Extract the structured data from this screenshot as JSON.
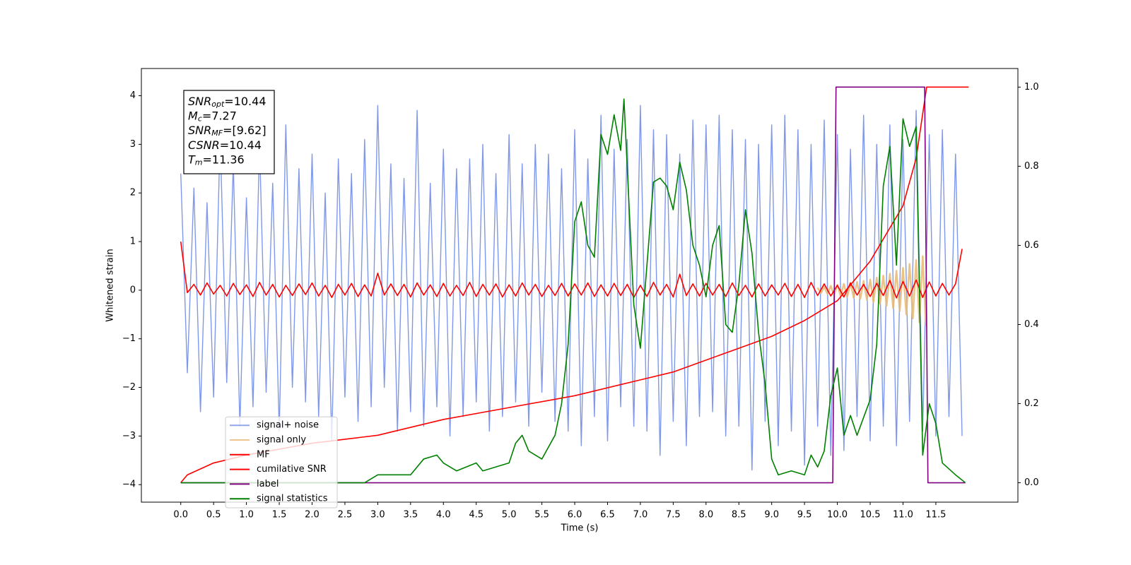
{
  "chart_data": {
    "type": "line",
    "xlabel": "Time (s)",
    "ylabel": "Whitened strain",
    "xlim": [
      -0.6,
      12.75
    ],
    "ylim": [
      -4.36,
      4.56
    ],
    "y2lim": [
      -0.049,
      1.047
    ],
    "xticks": [
      {
        "value": 0,
        "label": "0.0"
      },
      0.5,
      {
        "value": 1,
        "label": "1.0"
      },
      1.5,
      {
        "value": 2,
        "label": "2.0"
      },
      2.5,
      {
        "value": 3,
        "label": "3.0"
      },
      3.5,
      {
        "value": 4,
        "label": "4.0"
      },
      4.5,
      {
        "value": 5,
        "label": "5.0"
      },
      5.5,
      {
        "value": 6,
        "label": "6.0"
      },
      6.5,
      {
        "value": 7,
        "label": "7.0"
      },
      7.5,
      {
        "value": 8,
        "label": "8.0"
      },
      8.5,
      {
        "value": 9,
        "label": "9.0"
      },
      9.5,
      {
        "value": 10,
        "label": "10.0"
      },
      10.5,
      {
        "value": 11,
        "label": "11.0"
      },
      11.5
    ],
    "yticks": [
      {
        "value": -4,
        "label": "−4"
      },
      {
        "value": -3,
        "label": "−3"
      },
      {
        "value": -2,
        "label": "−2"
      },
      {
        "value": -1,
        "label": "−1"
      },
      0,
      1,
      2,
      3,
      4
    ],
    "y2ticks": [
      {
        "value": 0,
        "label": "0.0"
      },
      0.2,
      0.4,
      0.6,
      0.8,
      {
        "value": 1,
        "label": "1.0"
      }
    ],
    "legend_loc": "lower left",
    "annotations": [
      {
        "symbol": "SNR",
        "subscript": "opt",
        "text": "=10.44"
      },
      {
        "symbol": "M",
        "subscript": "c",
        "text": "=7.27"
      },
      {
        "symbol": "SNR",
        "subscript": "MF",
        "text": "=[9.62]"
      },
      {
        "symbol": "CSNR",
        "text": "=10.44"
      },
      {
        "symbol": "T",
        "subscript": "m",
        "text": "=11.36"
      }
    ],
    "x": [
      0,
      0.1,
      0.2,
      0.3,
      0.4,
      0.5,
      0.6,
      0.7,
      0.8,
      0.9,
      1,
      1.1,
      1.2,
      1.3,
      1.4,
      1.5,
      1.6,
      1.7,
      1.8,
      1.9,
      2,
      2.1,
      2.2,
      2.3,
      2.4,
      2.5,
      2.6,
      2.7,
      2.8,
      2.9,
      3,
      3.1,
      3.2,
      3.3,
      3.4,
      3.5,
      3.6,
      3.7,
      3.8,
      3.9,
      4,
      4.1,
      4.2,
      4.3,
      4.4,
      4.5,
      4.6,
      4.7,
      4.8,
      4.9,
      5,
      5.1,
      5.2,
      5.3,
      5.4,
      5.5,
      5.6,
      5.7,
      5.8,
      5.9,
      6,
      6.1,
      6.2,
      6.3,
      6.4,
      6.5,
      6.6,
      6.7,
      6.8,
      6.9,
      7,
      7.1,
      7.2,
      7.3,
      7.4,
      7.5,
      7.6,
      7.7,
      7.8,
      7.9,
      8,
      8.1,
      8.2,
      8.3,
      8.4,
      8.5,
      8.6,
      8.7,
      8.8,
      8.9,
      9,
      9.1,
      9.2,
      9.3,
      9.4,
      9.5,
      9.6,
      9.7,
      9.8,
      9.9,
      10,
      10.1,
      10.2,
      10.3,
      10.4,
      10.5,
      10.6,
      10.7,
      10.8,
      10.9,
      11,
      11.1,
      11.2,
      11.3,
      11.4,
      11.5,
      11.6,
      11.7,
      11.8,
      11.9
    ],
    "series": [
      {
        "name": "signal+ noise",
        "color": "#7892e8",
        "axis": "y",
        "values": [
          2.4,
          -1.7,
          2.1,
          -2.5,
          1.8,
          -2.2,
          3.2,
          -1.9,
          2.6,
          -2.8,
          1.9,
          -2.4,
          3.0,
          -2.1,
          2.2,
          -2.9,
          3.4,
          -2.0,
          2.5,
          -2.3,
          2.8,
          -2.6,
          2.0,
          -3.1,
          2.7,
          -2.2,
          2.4,
          -2.7,
          3.1,
          -2.4,
          3.8,
          -2.0,
          2.6,
          -2.9,
          2.3,
          -2.5,
          3.7,
          -2.8,
          2.2,
          -2.4,
          2.9,
          -3.0,
          2.5,
          -2.6,
          2.7,
          -2.3,
          3.0,
          -2.9,
          2.4,
          -2.6,
          3.2,
          -2.3,
          2.6,
          -2.8,
          3.0,
          -2.1,
          2.8,
          -2.7,
          2.5,
          -2.9,
          3.3,
          -3.2,
          2.7,
          -2.6,
          3.6,
          -3.1,
          2.9,
          -2.4,
          3.1,
          -2.8,
          3.8,
          -2.9,
          3.3,
          -3.4,
          3.2,
          -2.7,
          2.8,
          -3.2,
          3.5,
          -2.6,
          3.4,
          -2.5,
          3.6,
          -3.0,
          3.3,
          -2.8,
          3.1,
          -3.7,
          3.0,
          -2.7,
          3.4,
          -3.2,
          3.6,
          -2.9,
          3.3,
          -3.6,
          3.0,
          -2.8,
          3.5,
          -3.4,
          3.2,
          -3.3,
          2.9,
          -2.6,
          3.6,
          -3.1,
          3.0,
          -2.8,
          3.4,
          -3.2,
          3.1,
          -2.7,
          3.7,
          -2.9,
          3.2,
          -3.0,
          3.3,
          -2.6,
          2.8,
          -3.0
        ]
      },
      {
        "name": "signal only",
        "color": "#e8b872",
        "axis": "y",
        "x": [
          9.7,
          9.75,
          9.8,
          9.85,
          9.9,
          9.95,
          10,
          10.05,
          10.1,
          10.15,
          10.2,
          10.25,
          10.3,
          10.35,
          10.4,
          10.45,
          10.5,
          10.55,
          10.6,
          10.65,
          10.7,
          10.75,
          10.8,
          10.85,
          10.9,
          10.95,
          11,
          11.05,
          11.1,
          11.15,
          11.2,
          11.25,
          11.3,
          11.35
        ],
        "values": [
          0.05,
          -0.06,
          0.07,
          -0.08,
          0.09,
          -0.1,
          0.11,
          -0.12,
          0.13,
          -0.14,
          0.15,
          -0.16,
          0.17,
          -0.18,
          0.19,
          -0.2,
          0.22,
          -0.24,
          0.26,
          -0.28,
          0.3,
          -0.32,
          0.34,
          -0.37,
          0.4,
          -0.43,
          0.46,
          -0.5,
          0.54,
          -0.58,
          0.62,
          -0.66,
          0.7,
          -0.74
        ]
      },
      {
        "name": "MF",
        "color": "#ff0000",
        "axis": "y",
        "values": [
          1.0,
          -0.05,
          0.12,
          -0.1,
          0.15,
          -0.08,
          0.1,
          -0.12,
          0.14,
          -0.09,
          0.11,
          -0.13,
          0.16,
          -0.1,
          0.12,
          -0.14,
          0.1,
          -0.11,
          0.13,
          -0.09,
          0.15,
          -0.12,
          0.1,
          -0.15,
          0.12,
          -0.1,
          0.14,
          -0.13,
          0.11,
          -0.12,
          0.35,
          -0.1,
          0.13,
          -0.11,
          0.12,
          -0.14,
          0.15,
          -0.1,
          0.11,
          -0.13,
          0.14,
          -0.12,
          0.1,
          -0.11,
          0.16,
          -0.13,
          0.12,
          -0.1,
          0.13,
          -0.14,
          0.11,
          -0.12,
          0.15,
          -0.1,
          0.12,
          -0.13,
          0.1,
          -0.11,
          0.14,
          -0.12,
          0.13,
          -0.1,
          0.15,
          -0.13,
          0.11,
          -0.12,
          0.14,
          -0.11,
          0.12,
          -0.15,
          0.1,
          -0.13,
          0.16,
          -0.1,
          0.12,
          -0.14,
          0.33,
          -0.11,
          0.13,
          -0.12,
          0.14,
          -0.1,
          0.12,
          -0.13,
          0.15,
          -0.11,
          0.1,
          -0.14,
          0.13,
          -0.12,
          0.11,
          -0.1,
          0.14,
          -0.13,
          0.12,
          -0.15,
          0.16,
          -0.11,
          0.13,
          -0.12,
          0.1,
          -0.14,
          0.15,
          -0.1,
          0.12,
          -0.13,
          0.14,
          -0.11,
          0.2,
          -0.16,
          0.18,
          -0.12,
          0.21,
          -0.15,
          0.17,
          -0.12,
          0.14,
          -0.1,
          0.13,
          0.85
        ]
      },
      {
        "name": "cumilative SNR",
        "color": "#ff0000",
        "axis": "y2",
        "x": [
          0,
          0.1,
          0.5,
          1,
          2,
          3,
          4,
          5,
          6,
          7,
          7.5,
          8,
          8.5,
          9,
          9.5,
          10,
          10.5,
          11,
          11.2,
          11.36,
          12
        ],
        "values": [
          0,
          0.02,
          0.05,
          0.07,
          0.1,
          0.12,
          0.16,
          0.19,
          0.22,
          0.26,
          0.28,
          0.31,
          0.34,
          0.37,
          0.41,
          0.46,
          0.56,
          0.7,
          0.82,
          1.0,
          1.0
        ]
      },
      {
        "name": "label",
        "color": "#800080",
        "axis": "y2",
        "x": [
          0,
          9.93,
          9.98,
          11.33,
          11.38,
          11.95
        ],
        "values": [
          0,
          0,
          1,
          1,
          0,
          0
        ]
      },
      {
        "name": "signal statistics",
        "color": "#008000",
        "axis": "y2",
        "x": [
          0,
          2.8,
          3,
          3.5,
          3.7,
          3.9,
          4,
          4.2,
          4.5,
          4.6,
          5,
          5.1,
          5.2,
          5.3,
          5.5,
          5.7,
          5.8,
          5.9,
          6,
          6.1,
          6.2,
          6.3,
          6.4,
          6.5,
          6.6,
          6.7,
          6.75,
          6.9,
          7,
          7.1,
          7.2,
          7.3,
          7.4,
          7.5,
          7.6,
          7.7,
          7.8,
          7.9,
          8,
          8.1,
          8.2,
          8.3,
          8.4,
          8.5,
          8.6,
          8.7,
          8.8,
          8.9,
          9,
          9.1,
          9.3,
          9.5,
          9.6,
          9.7,
          9.8,
          9.9,
          10,
          10.1,
          10.2,
          10.3,
          10.5,
          10.6,
          10.7,
          10.8,
          10.9,
          11,
          11.1,
          11.2,
          11.3,
          11.4,
          11.5,
          11.6,
          11.8,
          11.95
        ],
        "values": [
          0,
          0,
          0.02,
          0.02,
          0.06,
          0.07,
          0.05,
          0.03,
          0.05,
          0.03,
          0.05,
          0.1,
          0.12,
          0.08,
          0.06,
          0.12,
          0.2,
          0.35,
          0.66,
          0.71,
          0.6,
          0.57,
          0.88,
          0.83,
          0.93,
          0.84,
          0.97,
          0.45,
          0.34,
          0.55,
          0.76,
          0.77,
          0.75,
          0.69,
          0.81,
          0.74,
          0.6,
          0.55,
          0.47,
          0.6,
          0.65,
          0.4,
          0.38,
          0.5,
          0.69,
          0.58,
          0.38,
          0.25,
          0.06,
          0.02,
          0.03,
          0.02,
          0.07,
          0.04,
          0.08,
          0.22,
          0.29,
          0.12,
          0.17,
          0.12,
          0.21,
          0.35,
          0.75,
          0.85,
          0.55,
          0.92,
          0.85,
          0.9,
          0.07,
          0.2,
          0.15,
          0.05,
          0.02,
          0
        ]
      }
    ]
  }
}
